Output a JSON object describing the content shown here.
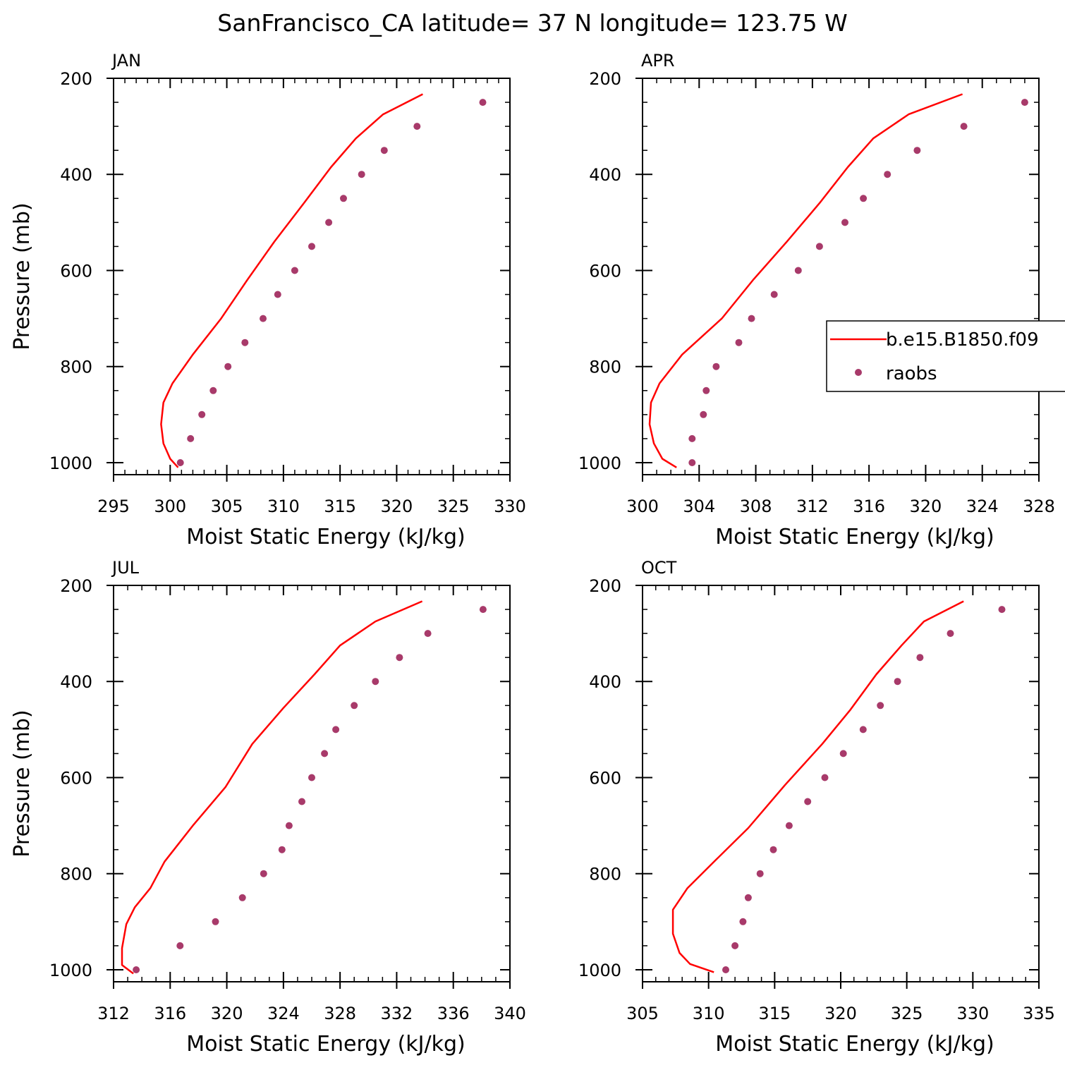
{
  "title": "SanFrancisco_CA  latitude= 37 N longitude= 123.75 W",
  "colors": {
    "model": "#ff0000",
    "raobs": "#a83a6a",
    "axis": "#000000"
  },
  "legend": {
    "model_label": "b.e15.B1850.f09",
    "raobs_label": "raobs",
    "placement": "right-of-APR"
  },
  "chart_data": [
    {
      "type": "line+scatter",
      "label": "JAN",
      "xlabel": "Moist Static Energy (kJ/kg)",
      "ylabel": "Pressure (mb)",
      "xlim": [
        295,
        330
      ],
      "xticks": [
        295,
        300,
        305,
        310,
        315,
        320,
        325,
        330
      ],
      "ylim": [
        1025,
        200
      ],
      "yticks": [
        200,
        400,
        600,
        800,
        1000
      ],
      "series": [
        {
          "kind": "line",
          "p": [
            1010,
            992,
            960,
            920,
            875,
            835,
            775,
            700,
            620,
            540,
            460,
            385,
            325,
            275,
            233
          ],
          "v": [
            300.7,
            300.0,
            299.4,
            299.2,
            299.4,
            300.2,
            302.0,
            304.5,
            306.8,
            309.2,
            311.8,
            314.2,
            316.4,
            318.8,
            322.3
          ]
        },
        {
          "kind": "scatter",
          "p": [
            250,
            300,
            350,
            400,
            450,
            500,
            550,
            600,
            650,
            700,
            750,
            800,
            850,
            900,
            950,
            1000
          ],
          "v": [
            327.6,
            321.8,
            318.9,
            316.9,
            315.3,
            314.0,
            312.5,
            311.0,
            309.5,
            308.2,
            306.6,
            305.1,
            303.8,
            302.8,
            301.8,
            300.9
          ]
        }
      ]
    },
    {
      "type": "line+scatter",
      "label": "APR",
      "xlabel": "Moist Static Energy (kJ/kg)",
      "ylabel": "",
      "xlim": [
        300,
        328
      ],
      "xticks": [
        300,
        304,
        308,
        312,
        316,
        320,
        324,
        328
      ],
      "ylim": [
        1025,
        200
      ],
      "yticks": [
        200,
        400,
        600,
        800,
        1000
      ],
      "series": [
        {
          "kind": "line",
          "p": [
            1010,
            992,
            960,
            920,
            875,
            835,
            775,
            700,
            620,
            540,
            460,
            385,
            325,
            275,
            233
          ],
          "v": [
            302.4,
            301.4,
            300.8,
            300.5,
            300.6,
            301.2,
            302.8,
            305.6,
            307.8,
            310.2,
            312.5,
            314.5,
            316.3,
            318.8,
            322.6
          ]
        },
        {
          "kind": "scatter",
          "p": [
            250,
            300,
            350,
            400,
            450,
            500,
            550,
            600,
            650,
            700,
            750,
            800,
            850,
            900,
            950,
            1000
          ],
          "v": [
            327.0,
            322.7,
            319.4,
            317.3,
            315.6,
            314.3,
            312.5,
            311.0,
            309.3,
            307.7,
            306.8,
            305.2,
            304.5,
            304.3,
            303.5,
            303.5
          ]
        }
      ]
    },
    {
      "type": "line+scatter",
      "label": "JUL",
      "xlabel": "Moist Static Energy (kJ/kg)",
      "ylabel": "Pressure (mb)",
      "xlim": [
        312,
        340
      ],
      "xticks": [
        312,
        316,
        320,
        324,
        328,
        332,
        336,
        340
      ],
      "ylim": [
        1025,
        200
      ],
      "yticks": [
        200,
        400,
        600,
        800,
        1000
      ],
      "series": [
        {
          "kind": "line",
          "p": [
            1008,
            990,
            955,
            905,
            870,
            830,
            775,
            700,
            620,
            530,
            455,
            385,
            325,
            275,
            233
          ],
          "v": [
            313.4,
            312.6,
            312.6,
            312.9,
            313.5,
            314.6,
            315.6,
            317.6,
            319.9,
            321.8,
            324.0,
            326.2,
            328.0,
            330.5,
            333.8
          ]
        },
        {
          "kind": "scatter",
          "p": [
            250,
            300,
            350,
            400,
            450,
            500,
            550,
            600,
            650,
            700,
            750,
            800,
            850,
            900,
            950,
            1000
          ],
          "v": [
            338.1,
            334.2,
            332.2,
            330.5,
            329.0,
            327.7,
            326.9,
            326.0,
            325.3,
            324.4,
            323.9,
            322.6,
            321.1,
            319.2,
            316.7,
            313.6
          ]
        }
      ]
    },
    {
      "type": "line+scatter",
      "label": "OCT",
      "xlabel": "Moist Static Energy (kJ/kg)",
      "ylabel": "",
      "xlim": [
        305,
        335
      ],
      "xticks": [
        305,
        310,
        315,
        320,
        325,
        330,
        335
      ],
      "ylim": [
        1025,
        200
      ],
      "yticks": [
        200,
        400,
        600,
        800,
        1000
      ],
      "series": [
        {
          "kind": "line",
          "p": [
            1005,
            988,
            965,
            925,
            875,
            830,
            770,
            705,
            615,
            530,
            460,
            385,
            325,
            275,
            233
          ],
          "v": [
            310.4,
            308.6,
            307.8,
            307.3,
            307.3,
            308.4,
            310.6,
            313.0,
            315.8,
            318.6,
            320.7,
            322.7,
            324.6,
            326.3,
            329.3
          ]
        },
        {
          "kind": "scatter",
          "p": [
            250,
            300,
            350,
            400,
            450,
            500,
            550,
            600,
            650,
            700,
            750,
            800,
            850,
            900,
            950,
            1000
          ],
          "v": [
            332.2,
            328.3,
            326.0,
            324.3,
            323.0,
            321.7,
            320.2,
            318.8,
            317.5,
            316.1,
            314.9,
            313.9,
            313.0,
            312.6,
            312.0,
            311.3
          ]
        }
      ]
    }
  ]
}
